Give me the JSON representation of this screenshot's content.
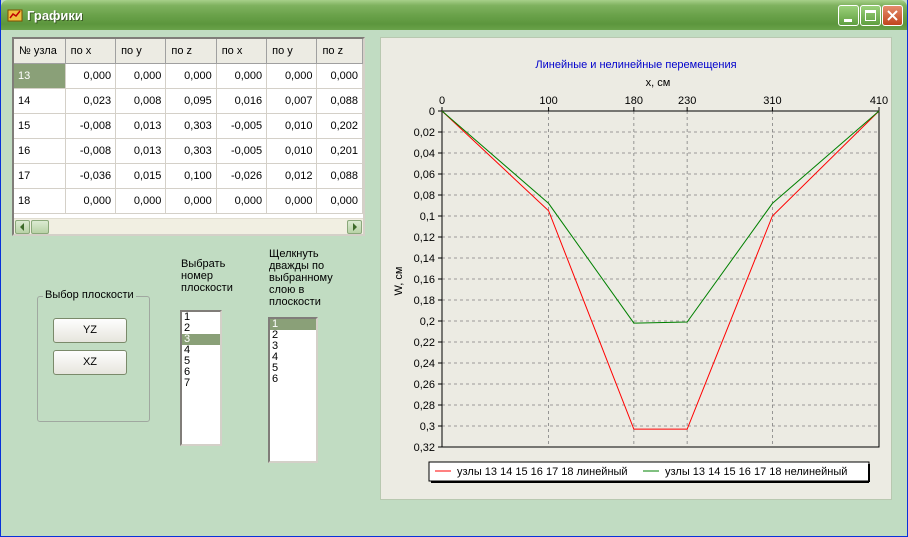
{
  "window": {
    "title": "Графики"
  },
  "grid": {
    "headers": [
      "№ узла",
      "по x",
      "по y",
      "по z",
      "по x",
      "по y",
      "по z"
    ],
    "rows": [
      [
        "13",
        "0,000",
        "0,000",
        "0,000",
        "0,000",
        "0,000",
        "0,000"
      ],
      [
        "14",
        "0,023",
        "0,008",
        "0,095",
        "0,016",
        "0,007",
        "0,088"
      ],
      [
        "15",
        "-0,008",
        "0,013",
        "0,303",
        "-0,005",
        "0,010",
        "0,202"
      ],
      [
        "16",
        "-0,008",
        "0,013",
        "0,303",
        "-0,005",
        "0,010",
        "0,201"
      ],
      [
        "17",
        "-0,036",
        "0,015",
        "0,100",
        "-0,026",
        "0,012",
        "0,088"
      ],
      [
        "18",
        "0,000",
        "0,000",
        "0,000",
        "0,000",
        "0,000",
        "0,000"
      ]
    ]
  },
  "plane_group": {
    "title": "Выбор плоскости",
    "btn_yz": "YZ",
    "btn_xz": "XZ"
  },
  "plane_list": {
    "label_lines": [
      "Выбрать",
      "номер",
      "плоскости"
    ],
    "items": [
      "1",
      "2",
      "3",
      "4",
      "5",
      "6",
      "7"
    ],
    "selected": "3"
  },
  "layer_list": {
    "label_lines": [
      "Щелкнуть",
      "дважды по",
      "выбранному",
      "слою в",
      "плоскости"
    ],
    "items": [
      "1",
      "2",
      "3",
      "4",
      "5",
      "6"
    ],
    "selected": "1"
  },
  "colors": {
    "linear": "#ff0000",
    "nonlinear": "#008000",
    "title": "#0000cc",
    "selection": "#8aa078"
  },
  "chart_data": {
    "type": "line",
    "title": "Линейные и нелинейные перемещения",
    "xlabel": "x, см",
    "ylabel": "W, см",
    "x": [
      0,
      100,
      180,
      230,
      310,
      410
    ],
    "x_ticks": [
      "0",
      "100",
      "180",
      "230",
      "310",
      "410"
    ],
    "y_ticks": [
      "0",
      "0,02",
      "0,04",
      "0,06",
      "0,08",
      "0,1",
      "0,12",
      "0,14",
      "0,16",
      "0,18",
      "0,2",
      "0,22",
      "0,24",
      "0,26",
      "0,28",
      "0,3",
      "0,32"
    ],
    "ylim": [
      0,
      0.32
    ],
    "y_inverted": true,
    "xaxis_position": "top",
    "grid": true,
    "legend": "bottom",
    "series": [
      {
        "name": "узлы 13 14 15 16 17 18  линейный",
        "values": [
          0,
          0.095,
          0.303,
          0.303,
          0.1,
          0
        ],
        "color": "#ff0000"
      },
      {
        "name": "узлы 13 14 15 16 17 18  нелинейный",
        "values": [
          0,
          0.088,
          0.202,
          0.201,
          0.088,
          0
        ],
        "color": "#008000"
      }
    ]
  }
}
